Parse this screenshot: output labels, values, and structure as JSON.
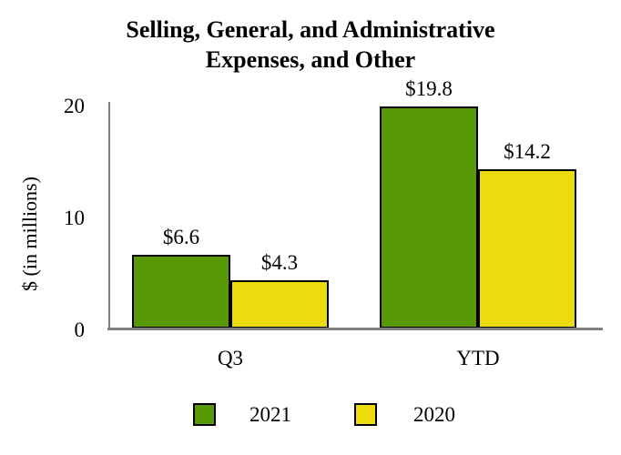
{
  "chart_data": {
    "type": "bar",
    "title": "Selling, General, and Administrative Expenses, and Other",
    "title_lines": [
      "Selling, General, and Administrative",
      "Expenses, and Other"
    ],
    "ylabel": "$ (in millions)",
    "xlabel": "",
    "categories": [
      "Q3",
      "YTD"
    ],
    "series": [
      {
        "name": "2021",
        "color": "#599908",
        "values": [
          6.6,
          19.8
        ],
        "data_labels": [
          "$6.6",
          "$19.8"
        ]
      },
      {
        "name": "2020",
        "color": "#ecdc0e",
        "values": [
          4.3,
          14.2
        ],
        "data_labels": [
          "$4.3",
          "$14.2"
        ]
      }
    ],
    "yticks": [
      0,
      10,
      20
    ],
    "ylim": [
      0,
      20.5
    ],
    "grid": false,
    "legend_position": "bottom",
    "axis_color": "#808080",
    "bar_border_color": "#000000",
    "text_color": "#000000"
  }
}
